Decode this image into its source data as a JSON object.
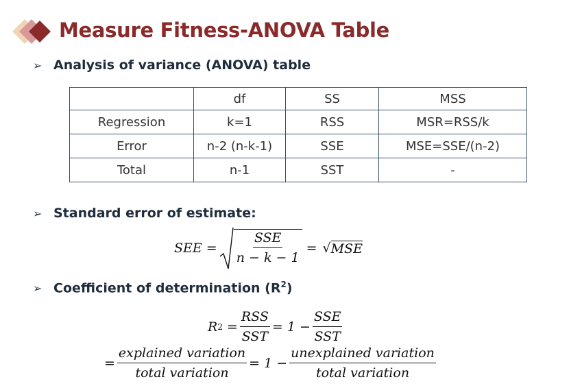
{
  "title": "Measure Fitness-ANOVA Table",
  "bullets": {
    "anova": "Analysis of variance (ANOVA) table",
    "see": "Standard error of estimate:",
    "r2_prefix": "Coefficient of determination (R",
    "r2_sup": "2",
    "r2_suffix": ")"
  },
  "arrow_glyph": "➢",
  "table": {
    "headers": [
      "",
      "df",
      "SS",
      "MSS"
    ],
    "rows": [
      [
        "Regression",
        "k=1",
        "RSS",
        "MSR=RSS/k"
      ],
      [
        "Error",
        "n-2 (n-k-1)",
        "SSE",
        "MSE=SSE/(n-2)"
      ],
      [
        "Total",
        "n-1",
        "SST",
        "-"
      ]
    ]
  },
  "formulas": {
    "see_lhs": "SEE =",
    "see_num": "SSE",
    "see_den": "n − k − 1",
    "see_eq": "=",
    "see_rhs": "MSE",
    "r2_lhs": "R",
    "r2_sup": "2",
    "r2_eq": "=",
    "r2_num1": "RSS",
    "r2_den1": "SST",
    "r2_eq2": "= 1 −",
    "r2_num2": "SSE",
    "r2_den2": "SST",
    "line3_eq": "=",
    "line3_num1": "explained variation",
    "line3_den1": "total variation",
    "line3_eq2": "= 1 −",
    "line3_num2": "unexplained variation",
    "line3_den2": "total variation"
  },
  "colors": {
    "title": "#8b2a2a",
    "logo_dark": "#8b2a2a",
    "logo_mid": "#d79a9a",
    "logo_light": "#f1d4b4"
  }
}
